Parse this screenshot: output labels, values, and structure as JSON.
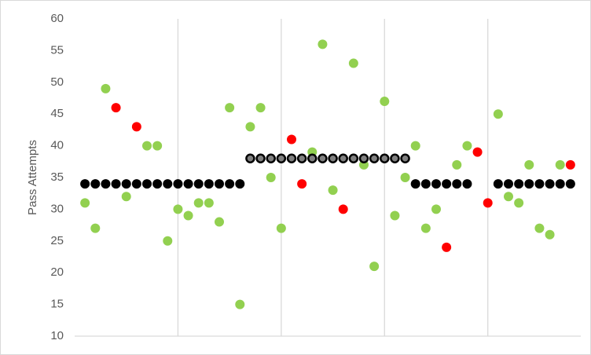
{
  "chart_data": {
    "type": "scatter",
    "y_label": "Pass Attempts",
    "xlim": [
      0,
      49
    ],
    "xticks": [
      10,
      20,
      30,
      40
    ],
    "x_tick_labels": false,
    "x_grid": true,
    "ylim": [
      10,
      60
    ],
    "yticks": [
      10,
      15,
      20,
      25,
      30,
      35,
      40,
      45,
      50,
      55,
      60
    ],
    "y_grid": false,
    "series": [
      {
        "color": "#92d050",
        "x": [
          1,
          2,
          3,
          5,
          7,
          8,
          9,
          10,
          11,
          12,
          13,
          14,
          15,
          16,
          17,
          18,
          19,
          20,
          23,
          24,
          25,
          27,
          28,
          29,
          30,
          31,
          32,
          33,
          34,
          35,
          37,
          38,
          41,
          42,
          43,
          44,
          45,
          46,
          47
        ],
        "values": [
          31,
          27,
          49,
          32,
          40,
          40,
          25,
          30,
          29,
          31,
          31,
          28,
          46,
          15,
          43,
          46,
          35,
          27,
          39,
          56,
          33,
          53,
          37,
          21,
          47,
          29,
          35,
          40,
          27,
          30,
          37,
          40,
          45,
          32,
          31,
          37,
          27,
          26,
          37
        ]
      },
      {
        "color": "#ff0000",
        "x": [
          4,
          6,
          21,
          22,
          26,
          36,
          39,
          40,
          48
        ],
        "values": [
          46,
          43,
          41,
          34,
          30,
          24,
          39,
          31,
          37
        ]
      },
      {
        "color": "#000000",
        "x": [
          1,
          2,
          3,
          4,
          5,
          6,
          7,
          8,
          9,
          10,
          11,
          12,
          13,
          14,
          15,
          16
        ],
        "values": [
          34,
          34,
          34,
          34,
          34,
          34,
          34,
          34,
          34,
          34,
          34,
          34,
          34,
          34,
          34,
          34
        ]
      },
      {
        "color": "#808080",
        "edge_color": "#000000",
        "x": [
          17,
          18,
          19,
          20,
          21,
          22,
          23,
          24,
          25,
          26,
          27,
          28,
          29,
          30,
          31,
          32
        ],
        "values": [
          38,
          38,
          38,
          38,
          38,
          38,
          38,
          38,
          38,
          38,
          38,
          38,
          38,
          38,
          38,
          38
        ]
      },
      {
        "color": "#000000",
        "x": [
          33,
          34,
          35,
          36,
          37,
          38
        ],
        "values": [
          34,
          34,
          34,
          34,
          34,
          34
        ]
      },
      {
        "color": "#000000",
        "x": [
          41,
          42,
          43,
          44,
          45,
          46,
          47,
          48
        ],
        "values": [
          34,
          34,
          34,
          34,
          34,
          34,
          34,
          34
        ]
      }
    ]
  }
}
